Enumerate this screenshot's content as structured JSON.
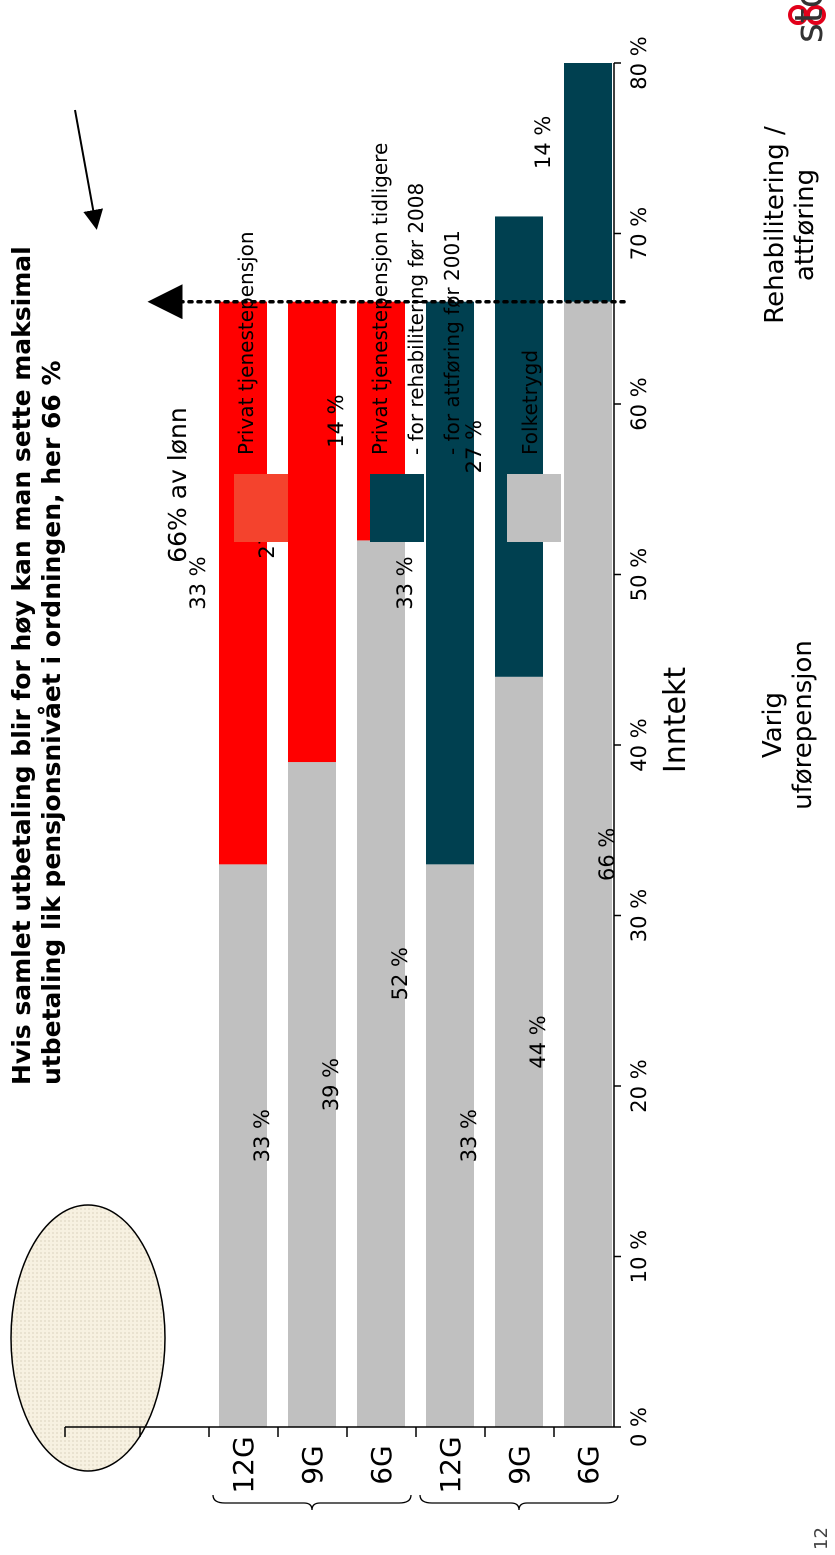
{
  "title": {
    "line1": "Hvis samlet utbetaling blir for høy kan man sette maksimal",
    "line2": "utbetaling lik pensjonsnivået i ordningen, her 66 %"
  },
  "page_number": "12",
  "brand": "storebrand",
  "colors": {
    "privat": "#ff0000",
    "privat_legend": "#f4432d",
    "tidligere": "#004050",
    "folketrygd": "#c0c0c0",
    "ellipse_fill": "#f7f1e1"
  },
  "legend": {
    "header": "66% av lønn",
    "items": [
      {
        "label": "Privat tjenestepensjon",
        "color": "#f4432d"
      },
      {
        "label": "Privat tjenestepensjon tidligere",
        "sub": [
          "- for rehabilitering før 2008",
          "- for attføring før 2001"
        ],
        "color": "#004050"
      },
      {
        "label": "Folketrygd",
        "color": "#c0c0c0"
      }
    ]
  },
  "chart_data": {
    "type": "bar",
    "stacked": true,
    "categories": [
      "6G",
      "9G",
      "12G",
      "6G",
      "9G",
      "12G"
    ],
    "groups": [
      {
        "label_lines": [
          "Rehabilitering /",
          "attføring"
        ],
        "categories": [
          0,
          1,
          2
        ]
      },
      {
        "label_lines": [
          "Varig",
          "uførepensjon"
        ],
        "categories": [
          3,
          4,
          5
        ]
      }
    ],
    "series": [
      {
        "name": "Folketrygd",
        "values": [
          66,
          44,
          33,
          52,
          39,
          33
        ],
        "labels": [
          "66 %",
          "44 %",
          "33 %",
          "52 %",
          "39 %",
          "33 %"
        ]
      },
      {
        "name": "Privat tjenestepensjon tidligere",
        "values": [
          14,
          27,
          33,
          0,
          0,
          0
        ],
        "labels": [
          "14 %",
          "27 %",
          "33 %",
          "",
          "",
          ""
        ]
      },
      {
        "name": "Privat tjenestepensjon",
        "values": [
          0,
          0,
          0,
          14,
          27,
          33
        ],
        "labels": [
          "",
          "",
          "",
          "14 %",
          "27 %",
          "33 %"
        ]
      }
    ],
    "ylim": [
      0,
      80
    ],
    "yticks": [
      "0 %",
      "10 %",
      "20 %",
      "30 %",
      "40 %",
      "50 %",
      "60 %",
      "70 %",
      "80 %"
    ],
    "xlabel": "Inntekt",
    "cap_line": 66
  }
}
